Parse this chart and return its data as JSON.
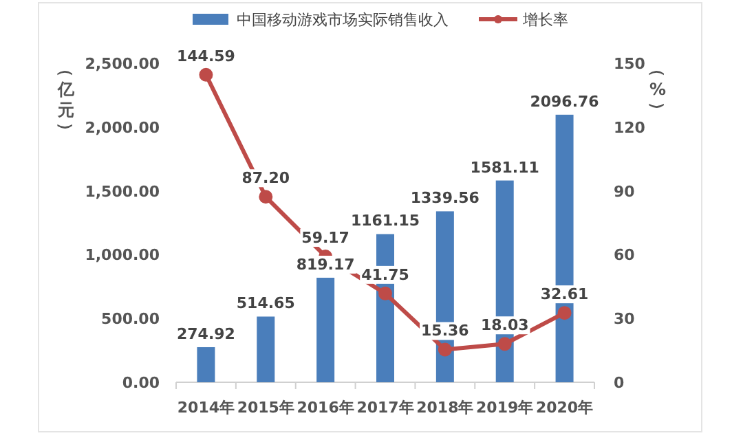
{
  "chart_data": {
    "type": "bar",
    "categories": [
      "2014年",
      "2015年",
      "2016年",
      "2017年",
      "2018年",
      "2019年",
      "2020年"
    ],
    "ylabel": "（亿元）",
    "y2label": "（%）",
    "series": [
      {
        "name": "中国移动游戏市场实际销售收入",
        "color": "#4a7ebb",
        "values": [
          274.92,
          514.65,
          819.17,
          1161.15,
          1339.56,
          1581.11,
          2096.76
        ],
        "value_labels": [
          "274.92",
          "514.65",
          "819.17",
          "1161.15",
          "1339.56",
          "1581.11",
          "2096.76"
        ]
      },
      {
        "name": "增长率",
        "type": "line",
        "axis": "y2",
        "color": "#be4b48",
        "values": [
          144.59,
          87.2,
          59.17,
          41.75,
          15.36,
          18.03,
          32.61
        ],
        "value_labels": [
          "144.59",
          "87.20",
          "59.17",
          "41.75",
          "15.36",
          "18.03",
          "32.61"
        ]
      }
    ],
    "ylim": [
      0,
      2500
    ],
    "yticks": [
      {
        "value": 0,
        "label": "0.00"
      },
      {
        "value": 500,
        "label": "500.00"
      },
      {
        "value": 1000,
        "label": "1,000.00"
      },
      {
        "value": 1500,
        "label": "1,500.00"
      },
      {
        "value": 2000,
        "label": "2,000.00"
      },
      {
        "value": 2500,
        "label": "2,500.00"
      }
    ],
    "y2lim": [
      0,
      150
    ],
    "y2ticks": [
      0,
      30,
      60,
      90,
      120,
      150
    ],
    "legend": "top",
    "grid": false,
    "marker": "circle"
  }
}
